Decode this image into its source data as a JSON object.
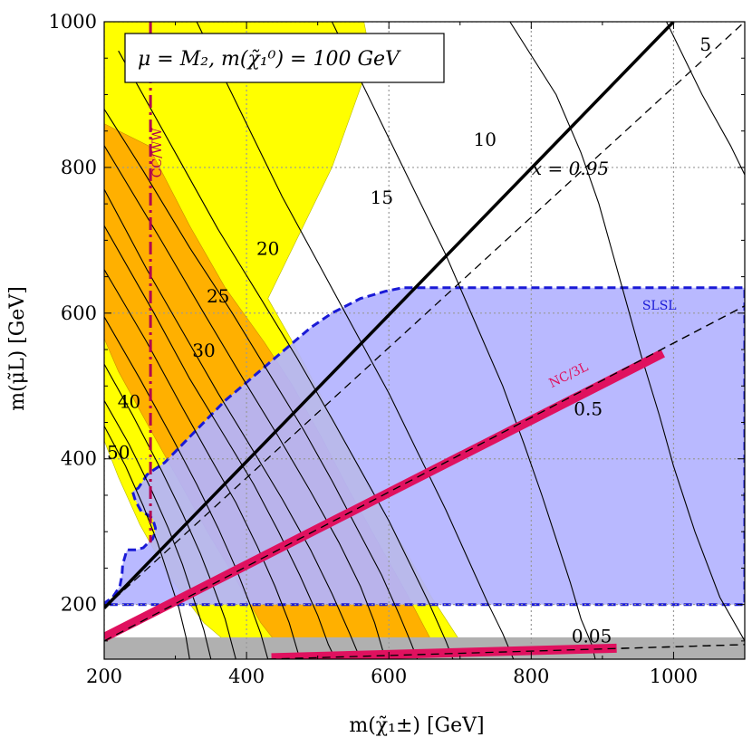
{
  "chart_data": {
    "type": "area",
    "legend_box": "μ = M₂,  m(χ̃₁⁰) = 100 GeV",
    "xlabel": "m(χ̃₁±) [GeV]",
    "ylabel": "m(μ̃L) [GeV]",
    "xlim": [
      200,
      1100
    ],
    "ylim": [
      125,
      1000
    ],
    "x_ticks": [
      200,
      400,
      600,
      800,
      1000
    ],
    "y_ticks": [
      200,
      400,
      600,
      800,
      1000
    ],
    "grid": true,
    "regions": [
      {
        "name": "SLSL",
        "color": "#b3b3ff",
        "border": "#1a1ad6",
        "label": "SLSL",
        "points": [
          [
            230,
            200
          ],
          [
            1100,
            200
          ],
          [
            1100,
            635
          ],
          [
            1100,
            635
          ],
          [
            620,
            635
          ],
          [
            595,
            630
          ],
          [
            560,
            620
          ],
          [
            520,
            600
          ],
          [
            490,
            580
          ],
          [
            460,
            555
          ],
          [
            430,
            530
          ],
          [
            400,
            505
          ],
          [
            370,
            480
          ],
          [
            345,
            455
          ],
          [
            320,
            430
          ],
          [
            300,
            410
          ],
          [
            285,
            395
          ],
          [
            270,
            385
          ],
          [
            260,
            378
          ],
          [
            258,
            375
          ],
          [
            248,
            360
          ],
          [
            240,
            355
          ],
          [
            243,
            345
          ],
          [
            248,
            335
          ],
          [
            252,
            328
          ],
          [
            258,
            325
          ],
          [
            268,
            318
          ],
          [
            272,
            305
          ],
          [
            270,
            295
          ],
          [
            268,
            290
          ],
          [
            262,
            285
          ],
          [
            255,
            278
          ],
          [
            245,
            275
          ],
          [
            232,
            275
          ],
          [
            226,
            255
          ],
          [
            225,
            240
          ],
          [
            222,
            225
          ],
          [
            212,
            210
          ],
          [
            202,
            203
          ],
          [
            200,
            200
          ]
        ]
      },
      {
        "name": "yellow band",
        "color": "#ffff00",
        "points": [
          [
            200,
            1000
          ],
          [
            565,
            1000
          ],
          [
            575,
            950
          ],
          [
            520,
            800
          ],
          [
            470,
            700
          ],
          [
            430,
            620
          ],
          [
            465,
            560
          ],
          [
            500,
            495
          ],
          [
            540,
            420
          ],
          [
            580,
            345
          ],
          [
            620,
            280
          ],
          [
            660,
            210
          ],
          [
            710,
            135
          ],
          [
            740,
            125
          ],
          [
            400,
            125
          ],
          [
            340,
            175
          ],
          [
            290,
            240
          ],
          [
            250,
            310
          ],
          [
            220,
            375
          ],
          [
            200,
            425
          ]
        ]
      },
      {
        "name": "orange band",
        "color": "#ffb000",
        "points": [
          [
            200,
            860
          ],
          [
            262,
            830
          ],
          [
            320,
            720
          ],
          [
            370,
            635
          ],
          [
            425,
            560
          ],
          [
            465,
            500
          ],
          [
            505,
            430
          ],
          [
            545,
            355
          ],
          [
            585,
            285
          ],
          [
            625,
            215
          ],
          [
            660,
            150
          ],
          [
            675,
            125
          ],
          [
            460,
            125
          ],
          [
            420,
            175
          ],
          [
            385,
            235
          ],
          [
            345,
            300
          ],
          [
            305,
            370
          ],
          [
            265,
            440
          ],
          [
            220,
            520
          ],
          [
            200,
            565
          ]
        ]
      },
      {
        "name": "excluded strip",
        "color": "#b0b0b0",
        "points": [
          [
            200,
            125
          ],
          [
            1100,
            125
          ],
          [
            1100,
            155
          ],
          [
            200,
            155
          ]
        ]
      }
    ],
    "lines": [
      {
        "name": "x = 0.95 solid",
        "style": "solid-thick",
        "color": "#000000",
        "points": [
          [
            200,
            195
          ],
          [
            1000,
            1000
          ]
        ]
      },
      {
        "name": "x = 0.95 dashed",
        "style": "dashed",
        "color": "#000000",
        "points": [
          [
            200,
            195
          ],
          [
            1100,
            1000
          ]
        ]
      },
      {
        "name": "x = 0.5 dashed",
        "style": "dashed",
        "color": "#000000",
        "points": [
          [
            200,
            150
          ],
          [
            1100,
            610
          ]
        ]
      },
      {
        "name": "x = 0.05 dashed",
        "style": "dashed",
        "color": "#000000",
        "points": [
          [
            430,
            125
          ],
          [
            1100,
            145
          ]
        ]
      },
      {
        "name": "NC/3L band 0.5",
        "style": "band",
        "color": "#e0115f",
        "points": [
          [
            200,
            155
          ],
          [
            985,
            545
          ]
        ]
      },
      {
        "name": "NC/3L band 0.05",
        "style": "band",
        "color": "#e0115f",
        "points": [
          [
            435,
            127
          ],
          [
            920,
            140
          ]
        ]
      },
      {
        "name": "CC/WW",
        "style": "dashdot",
        "color": "#b00050",
        "points": [
          [
            265,
            1000
          ],
          [
            265,
            285
          ]
        ]
      }
    ],
    "contours": [
      {
        "label": "5",
        "points": [
          [
            990,
            1000
          ],
          [
            1040,
            900
          ],
          [
            1080,
            830
          ],
          [
            1100,
            790
          ]
        ]
      },
      {
        "label": "10",
        "points": [
          [
            770,
            1000
          ],
          [
            835,
            900
          ],
          [
            870,
            820
          ],
          [
            895,
            750
          ],
          [
            915,
            680
          ],
          [
            935,
            610
          ],
          [
            955,
            540
          ],
          [
            980,
            460
          ],
          [
            1000,
            390
          ],
          [
            1030,
            300
          ],
          [
            1065,
            210
          ],
          [
            1100,
            150
          ]
        ]
      },
      {
        "label": "15",
        "points": [
          [
            520,
            1000
          ],
          [
            560,
            920
          ],
          [
            600,
            840
          ],
          [
            640,
            760
          ],
          [
            680,
            680
          ],
          [
            720,
            590
          ],
          [
            760,
            500
          ],
          [
            790,
            420
          ],
          [
            815,
            350
          ],
          [
            835,
            290
          ],
          [
            855,
            230
          ],
          [
            870,
            180
          ],
          [
            885,
            145
          ],
          [
            890,
            125
          ]
        ]
      },
      {
        "label": "20",
        "points": [
          [
            330,
            1000
          ],
          [
            400,
            860
          ],
          [
            450,
            760
          ],
          [
            500,
            670
          ],
          [
            550,
            580
          ],
          [
            600,
            490
          ],
          [
            640,
            410
          ],
          [
            680,
            330
          ],
          [
            710,
            265
          ],
          [
            740,
            200
          ],
          [
            760,
            160
          ],
          [
            775,
            125
          ]
        ]
      },
      {
        "label": "25",
        "points": [
          [
            220,
            960
          ],
          [
            300,
            820
          ],
          [
            360,
            715
          ],
          [
            420,
            620
          ],
          [
            470,
            540
          ],
          [
            520,
            455
          ],
          [
            560,
            385
          ],
          [
            600,
            315
          ],
          [
            630,
            255
          ],
          [
            655,
            205
          ],
          [
            680,
            150
          ],
          [
            690,
            125
          ]
        ]
      },
      {
        "label": "30",
        "points": [
          [
            200,
            880
          ],
          [
            255,
            795
          ],
          [
            320,
            690
          ],
          [
            380,
            600
          ],
          [
            430,
            520
          ],
          [
            480,
            440
          ],
          [
            520,
            370
          ],
          [
            555,
            305
          ],
          [
            590,
            240
          ],
          [
            615,
            185
          ],
          [
            630,
            150
          ],
          [
            640,
            125
          ]
        ]
      },
      {
        "label": "40",
        "points": [
          [
            200,
            830
          ],
          [
            280,
            700
          ],
          [
            340,
            600
          ],
          [
            395,
            510
          ],
          [
            445,
            430
          ],
          [
            490,
            355
          ],
          [
            530,
            285
          ],
          [
            560,
            225
          ],
          [
            580,
            175
          ],
          [
            595,
            125
          ]
        ]
      },
      {
        "label": "50",
        "points": [
          [
            200,
            770
          ],
          [
            260,
            660
          ],
          [
            310,
            575
          ],
          [
            360,
            490
          ],
          [
            410,
            410
          ],
          [
            450,
            345
          ],
          [
            490,
            275
          ],
          [
            520,
            215
          ],
          [
            545,
            160
          ],
          [
            560,
            125
          ]
        ]
      },
      {
        "label": "",
        "points": [
          [
            200,
            720
          ],
          [
            270,
            600
          ],
          [
            320,
            510
          ],
          [
            370,
            430
          ],
          [
            410,
            365
          ],
          [
            445,
            300
          ],
          [
            475,
            240
          ],
          [
            500,
            185
          ],
          [
            515,
            145
          ],
          [
            525,
            125
          ]
        ]
      },
      {
        "label": "",
        "points": [
          [
            200,
            660
          ],
          [
            260,
            560
          ],
          [
            310,
            470
          ],
          [
            350,
            400
          ],
          [
            385,
            340
          ],
          [
            415,
            280
          ],
          [
            440,
            225
          ],
          [
            460,
            175
          ],
          [
            475,
            125
          ]
        ]
      },
      {
        "label": "",
        "points": [
          [
            200,
            595
          ],
          [
            250,
            510
          ],
          [
            295,
            430
          ],
          [
            330,
            365
          ],
          [
            360,
            305
          ],
          [
            385,
            250
          ],
          [
            405,
            200
          ],
          [
            420,
            160
          ],
          [
            430,
            125
          ]
        ]
      },
      {
        "label": "",
        "points": [
          [
            200,
            530
          ],
          [
            240,
            460
          ],
          [
            280,
            385
          ],
          [
            310,
            325
          ],
          [
            335,
            270
          ],
          [
            355,
            220
          ],
          [
            370,
            180
          ],
          [
            385,
            125
          ]
        ]
      },
      {
        "label": "",
        "points": [
          [
            200,
            480
          ],
          [
            235,
            420
          ],
          [
            265,
            360
          ],
          [
            290,
            305
          ],
          [
            310,
            255
          ],
          [
            325,
            210
          ],
          [
            340,
            165
          ],
          [
            350,
            125
          ]
        ]
      },
      {
        "label": "",
        "points": [
          [
            200,
            445
          ],
          [
            230,
            390
          ],
          [
            255,
            335
          ],
          [
            275,
            285
          ],
          [
            290,
            240
          ],
          [
            305,
            195
          ],
          [
            315,
            155
          ],
          [
            320,
            125
          ]
        ]
      }
    ],
    "annotations": [
      {
        "text": "x = 0.95",
        "x": 855,
        "y": 790
      },
      {
        "text": "0.5",
        "x": 880,
        "y": 460
      },
      {
        "text": "0.05",
        "x": 885,
        "y": 148
      },
      {
        "text": "NC/3L",
        "x": 855,
        "y": 510
      },
      {
        "text": "SLSL",
        "x": 980,
        "y": 605
      },
      {
        "text": "CC/WW",
        "x": 280,
        "y": 820
      },
      {
        "text": "10",
        "x": 735,
        "y": 830
      },
      {
        "text": "15",
        "x": 590,
        "y": 750
      },
      {
        "text": "20",
        "x": 430,
        "y": 680
      },
      {
        "text": "25",
        "x": 360,
        "y": 615
      },
      {
        "text": "30",
        "x": 340,
        "y": 540
      },
      {
        "text": "40",
        "x": 235,
        "y": 470
      },
      {
        "text": "50",
        "x": 220,
        "y": 400
      },
      {
        "text": "5",
        "x": 1045,
        "y": 960
      }
    ]
  }
}
